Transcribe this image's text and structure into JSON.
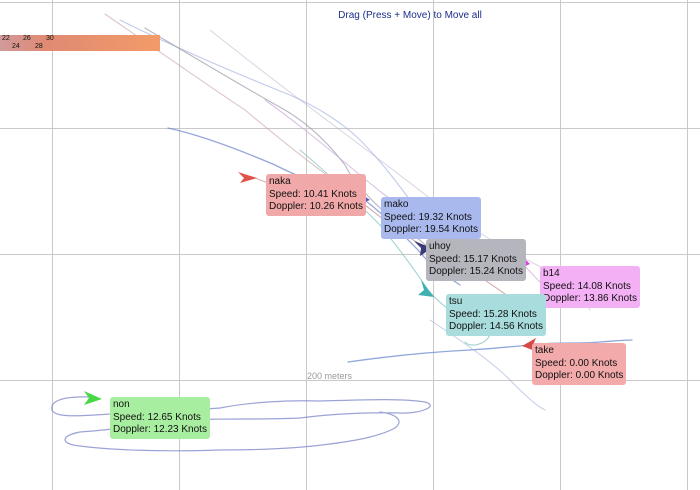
{
  "header": {
    "instruction": "Drag (Press + Move) to Move all"
  },
  "speed_scale": {
    "ticks": [
      "22",
      "24",
      "26",
      "28",
      "30"
    ]
  },
  "distance_scale": {
    "label": "200 meters"
  },
  "boats": [
    {
      "name": "naka",
      "speed": "Speed: 10.41 Knots",
      "doppler": "Doppler: 10.26 Knots",
      "color": "#f0a8a8",
      "arrow_color": "#e0524a"
    },
    {
      "name": "mako",
      "speed": "Speed: 19.32 Knots",
      "doppler": "Doppler: 19.54 Knots",
      "color": "#a9b9ee",
      "arrow_color": "#5a4fc0"
    },
    {
      "name": "uhoy",
      "speed": "Speed: 15.17 Knots",
      "doppler": "Doppler: 15.24 Knots",
      "color": "#b5b5bd",
      "arrow_color": "#3a3a78"
    },
    {
      "name": "b14",
      "speed": "Speed: 14.08 Knots",
      "doppler": "Doppler: 13.86 Knots",
      "color": "#f4b0f4",
      "arrow_color": "#e040e0"
    },
    {
      "name": "tsu",
      "speed": "Speed: 15.28 Knots",
      "doppler": "Doppler: 14.56 Knots",
      "color": "#a9dcdc",
      "arrow_color": "#40b0b0"
    },
    {
      "name": "take",
      "speed": "Speed: 0.00 Knots",
      "doppler": "Doppler: 0.00 Knots",
      "color": "#f3aaaa",
      "arrow_color": "#d84848"
    },
    {
      "name": "non",
      "speed": "Speed: 12.65 Knots",
      "doppler": "Doppler: 12.23 Knots",
      "color": "#a8eea0",
      "arrow_color": "#46d846"
    }
  ]
}
